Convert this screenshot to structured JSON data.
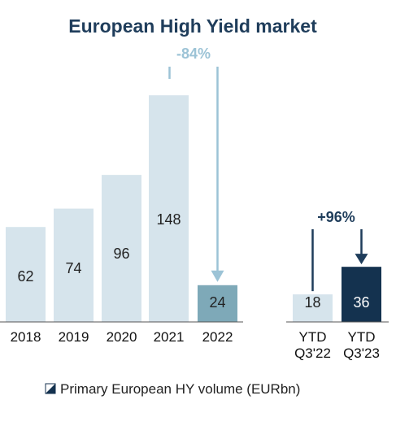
{
  "chart_data": {
    "type": "bar",
    "title": "European High Yield market",
    "categories": [
      "2018",
      "2019",
      "2020",
      "2021",
      "2022",
      "YTD\nQ3'22",
      "YTD\nQ3'23"
    ],
    "series": [
      {
        "name": "Primary European HY volume (EURbn)",
        "values": [
          62,
          74,
          96,
          148,
          24,
          18,
          36
        ]
      }
    ],
    "value_labels": [
      "62",
      "74",
      "96",
      "148",
      "24",
      "18",
      "36"
    ],
    "annotations": [
      {
        "text": "-84%",
        "from": "2021",
        "to": "2022"
      },
      {
        "text": "+96%",
        "from": "YTD\nQ3'22",
        "to": "YTD\nQ3'23"
      }
    ],
    "legend": {
      "position": "bottom",
      "label": "Primary European HY volume (EURbn)"
    },
    "grid": false,
    "ylim": [
      0,
      155
    ],
    "colors": {
      "light_bar": "#d6e4ec",
      "mid_bar": "#7ea9b8",
      "dark_bar": "#14324f",
      "decrease_arrow": "#9cc3d6",
      "increase_arrow": "#1f3d5b",
      "title": "#1f3d5b",
      "axis": "#555555"
    }
  }
}
